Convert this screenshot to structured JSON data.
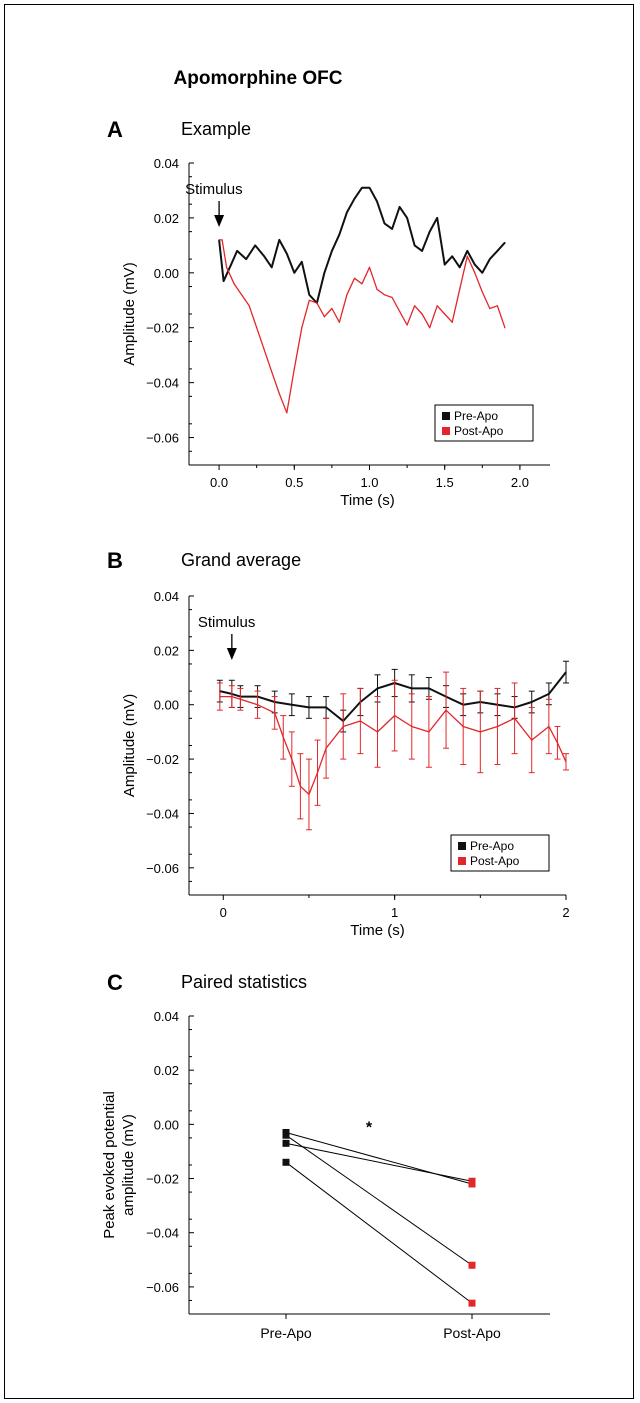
{
  "figure_title": "Apomorphine OFC",
  "colors": {
    "pre": "#111111",
    "post": "#e3262a"
  },
  "chart_data": [
    {
      "panel_label": "A",
      "type": "line",
      "title": "Example",
      "xlabel": "Time (s)",
      "ylabel": "Amplitude (mV)",
      "xlim": [
        -0.2,
        2.2
      ],
      "ylim": [
        -0.07,
        0.04
      ],
      "xticks": [
        0.0,
        0.5,
        1.0,
        1.5,
        2.0
      ],
      "xtick_labels": [
        "0.0",
        "0.5",
        "1.0",
        "1.5",
        "2.0"
      ],
      "yticks": [
        0.04,
        0.02,
        0.0,
        -0.02,
        -0.04,
        -0.06
      ],
      "ytick_labels": [
        "0.04",
        "0.02",
        "0.00",
        "−0.02",
        "−0.04",
        "−0.06"
      ],
      "annotation": "Stimulus",
      "annotation_x": 0.0,
      "legend_position": "bottom-right",
      "series": [
        {
          "name": "Pre-Apo",
          "color": "#111111",
          "x": [
            0.0,
            0.03,
            0.08,
            0.12,
            0.18,
            0.24,
            0.3,
            0.35,
            0.4,
            0.45,
            0.5,
            0.55,
            0.6,
            0.65,
            0.7,
            0.75,
            0.8,
            0.85,
            0.9,
            0.95,
            1.0,
            1.05,
            1.1,
            1.15,
            1.2,
            1.25,
            1.3,
            1.35,
            1.4,
            1.45,
            1.5,
            1.55,
            1.6,
            1.65,
            1.7,
            1.75,
            1.8,
            1.85,
            1.9
          ],
          "y": [
            0.012,
            -0.003,
            0.003,
            0.008,
            0.005,
            0.01,
            0.006,
            0.002,
            0.012,
            0.007,
            0.0,
            0.004,
            -0.008,
            -0.011,
            0.0,
            0.008,
            0.014,
            0.022,
            0.027,
            0.031,
            0.031,
            0.026,
            0.018,
            0.016,
            0.024,
            0.02,
            0.01,
            0.008,
            0.015,
            0.02,
            0.003,
            0.006,
            0.002,
            0.008,
            0.003,
            0.0,
            0.005,
            0.008,
            0.011
          ]
        },
        {
          "name": "Post-Apo",
          "color": "#e3262a",
          "x": [
            0.0,
            0.02,
            0.05,
            0.1,
            0.15,
            0.2,
            0.25,
            0.3,
            0.35,
            0.4,
            0.45,
            0.5,
            0.55,
            0.6,
            0.65,
            0.7,
            0.75,
            0.8,
            0.85,
            0.9,
            0.95,
            1.0,
            1.05,
            1.1,
            1.15,
            1.2,
            1.25,
            1.3,
            1.35,
            1.4,
            1.45,
            1.5,
            1.55,
            1.6,
            1.65,
            1.7,
            1.75,
            1.8,
            1.85,
            1.9
          ],
          "y": [
            0.012,
            0.012,
            0.002,
            -0.004,
            -0.008,
            -0.012,
            -0.02,
            -0.028,
            -0.036,
            -0.044,
            -0.051,
            -0.035,
            -0.02,
            -0.01,
            -0.011,
            -0.016,
            -0.013,
            -0.018,
            -0.008,
            -0.002,
            -0.004,
            0.002,
            -0.006,
            -0.008,
            -0.009,
            -0.014,
            -0.019,
            -0.012,
            -0.015,
            -0.02,
            -0.012,
            -0.015,
            -0.018,
            -0.006,
            0.006,
            0.0,
            -0.007,
            -0.013,
            -0.012,
            -0.02
          ]
        }
      ]
    },
    {
      "panel_label": "B",
      "type": "line",
      "title": "Grand average",
      "xlabel": "Time (s)",
      "ylabel": "Amplitude (mV)",
      "xlim": [
        -0.2,
        2.0
      ],
      "ylim": [
        -0.07,
        0.04
      ],
      "xticks": [
        0,
        1,
        2
      ],
      "xtick_labels": [
        "0",
        "1",
        "2"
      ],
      "yticks": [
        0.04,
        0.02,
        0.0,
        -0.02,
        -0.04,
        -0.06
      ],
      "ytick_labels": [
        "0.04",
        "0.02",
        "0.00",
        "−0.02",
        "−0.04",
        "−0.06"
      ],
      "annotation": "Stimulus",
      "annotation_x": 0.05,
      "legend_position": "bottom-right",
      "series": [
        {
          "name": "Pre-Apo",
          "color": "#111111",
          "x": [
            -0.02,
            0.05,
            0.1,
            0.2,
            0.3,
            0.4,
            0.5,
            0.6,
            0.7,
            0.8,
            0.9,
            1.0,
            1.1,
            1.2,
            1.3,
            1.4,
            1.5,
            1.6,
            1.7,
            1.8,
            1.9,
            2.0
          ],
          "y": [
            0.005,
            0.004,
            0.003,
            0.003,
            0.001,
            0.0,
            -0.001,
            -0.001,
            -0.006,
            0.001,
            0.006,
            0.008,
            0.006,
            0.006,
            0.003,
            0.0,
            0.001,
            0.0,
            -0.001,
            0.001,
            0.004,
            0.012
          ],
          "error": [
            0.004,
            0.005,
            0.004,
            0.004,
            0.004,
            0.004,
            0.004,
            0.004,
            0.004,
            0.005,
            0.005,
            0.005,
            0.005,
            0.004,
            0.004,
            0.004,
            0.004,
            0.004,
            0.004,
            0.004,
            0.004,
            0.004
          ]
        },
        {
          "name": "Post-Apo",
          "color": "#e3262a",
          "x": [
            -0.02,
            0.05,
            0.1,
            0.2,
            0.3,
            0.35,
            0.4,
            0.45,
            0.5,
            0.55,
            0.6,
            0.7,
            0.8,
            0.9,
            1.0,
            1.1,
            1.2,
            1.3,
            1.4,
            1.5,
            1.6,
            1.7,
            1.8,
            1.9,
            1.95,
            2.0
          ],
          "y": [
            0.003,
            0.003,
            0.002,
            0.0,
            -0.003,
            -0.012,
            -0.02,
            -0.03,
            -0.033,
            -0.025,
            -0.016,
            -0.008,
            -0.006,
            -0.01,
            -0.004,
            -0.008,
            -0.01,
            -0.002,
            -0.008,
            -0.01,
            -0.008,
            -0.005,
            -0.013,
            -0.008,
            -0.014,
            -0.021
          ],
          "error": [
            0.005,
            0.004,
            0.004,
            0.005,
            0.006,
            0.008,
            0.01,
            0.012,
            0.013,
            0.012,
            0.011,
            0.012,
            0.012,
            0.013,
            0.013,
            0.012,
            0.013,
            0.014,
            0.014,
            0.015,
            0.014,
            0.013,
            0.012,
            0.01,
            0.006,
            0.003
          ]
        }
      ]
    },
    {
      "panel_label": "C",
      "type": "scatter",
      "title": "Paired statistics",
      "xlabel": "",
      "ylabel": "Peak evoked potential amplitude (mV)",
      "ylabel_lines": [
        "Peak evoked potential",
        "amplitude (mV)"
      ],
      "categories": [
        "Pre-Apo",
        "Post-Apo"
      ],
      "ylim": [
        -0.07,
        0.04
      ],
      "yticks": [
        0.04,
        0.02,
        0.0,
        -0.02,
        -0.04,
        -0.06
      ],
      "ytick_labels": [
        "0.04",
        "0.02",
        "0.00",
        "−0.02",
        "−0.04",
        "−0.06"
      ],
      "significance": "*",
      "pairs": [
        {
          "pre": -0.003,
          "post": -0.022
        },
        {
          "pre": -0.004,
          "post": -0.052
        },
        {
          "pre": -0.007,
          "post": -0.021
        },
        {
          "pre": -0.014,
          "post": -0.066
        }
      ]
    }
  ]
}
